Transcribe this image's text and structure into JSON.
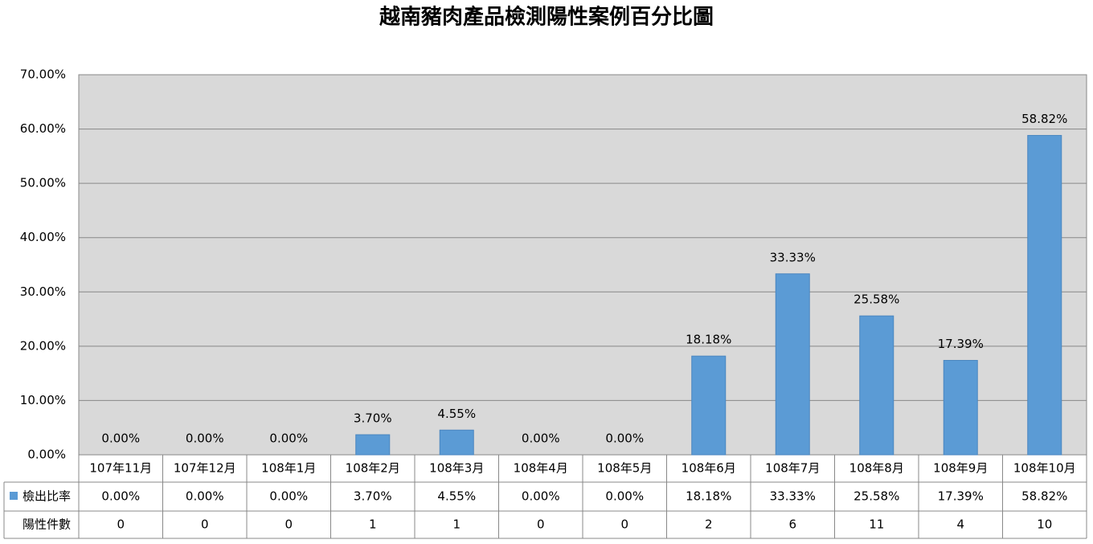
{
  "chart_data": {
    "type": "bar",
    "title": "越南豬肉產品檢測陽性案例百分比圖",
    "categories": [
      "107年11月",
      "107年12月",
      "108年1月",
      "108年2月",
      "108年3月",
      "108年4月",
      "108年5月",
      "108年6月",
      "108年7月",
      "108年8月",
      "108年9月",
      "108年10月"
    ],
    "series": [
      {
        "name": "檢出比率",
        "color": "#5b9bd5",
        "values": [
          0,
          0,
          0,
          3.7,
          4.55,
          0,
          0,
          18.18,
          33.33,
          25.58,
          17.39,
          58.82
        ],
        "value_labels": [
          "0.00%",
          "0.00%",
          "0.00%",
          "3.70%",
          "4.55%",
          "0.00%",
          "0.00%",
          "18.18%",
          "33.33%",
          "25.58%",
          "17.39%",
          "58.82%"
        ]
      }
    ],
    "ylim": [
      0,
      70
    ],
    "yticks": [
      {
        "value": 0,
        "label": "0.00%"
      },
      {
        "value": 10,
        "label": "10.00%"
      },
      {
        "value": 20,
        "label": "20.00%"
      },
      {
        "value": 30,
        "label": "30.00%"
      },
      {
        "value": 40,
        "label": "40.00%"
      },
      {
        "value": 50,
        "label": "50.00%"
      },
      {
        "value": 60,
        "label": "60.00%"
      },
      {
        "value": 70,
        "label": "70.00%"
      }
    ],
    "grid": true,
    "data_table": {
      "rows": [
        {
          "name": "陽性件數",
          "values": [
            0,
            0,
            0,
            1,
            1,
            0,
            0,
            2,
            6,
            11,
            4,
            10
          ]
        }
      ]
    }
  }
}
